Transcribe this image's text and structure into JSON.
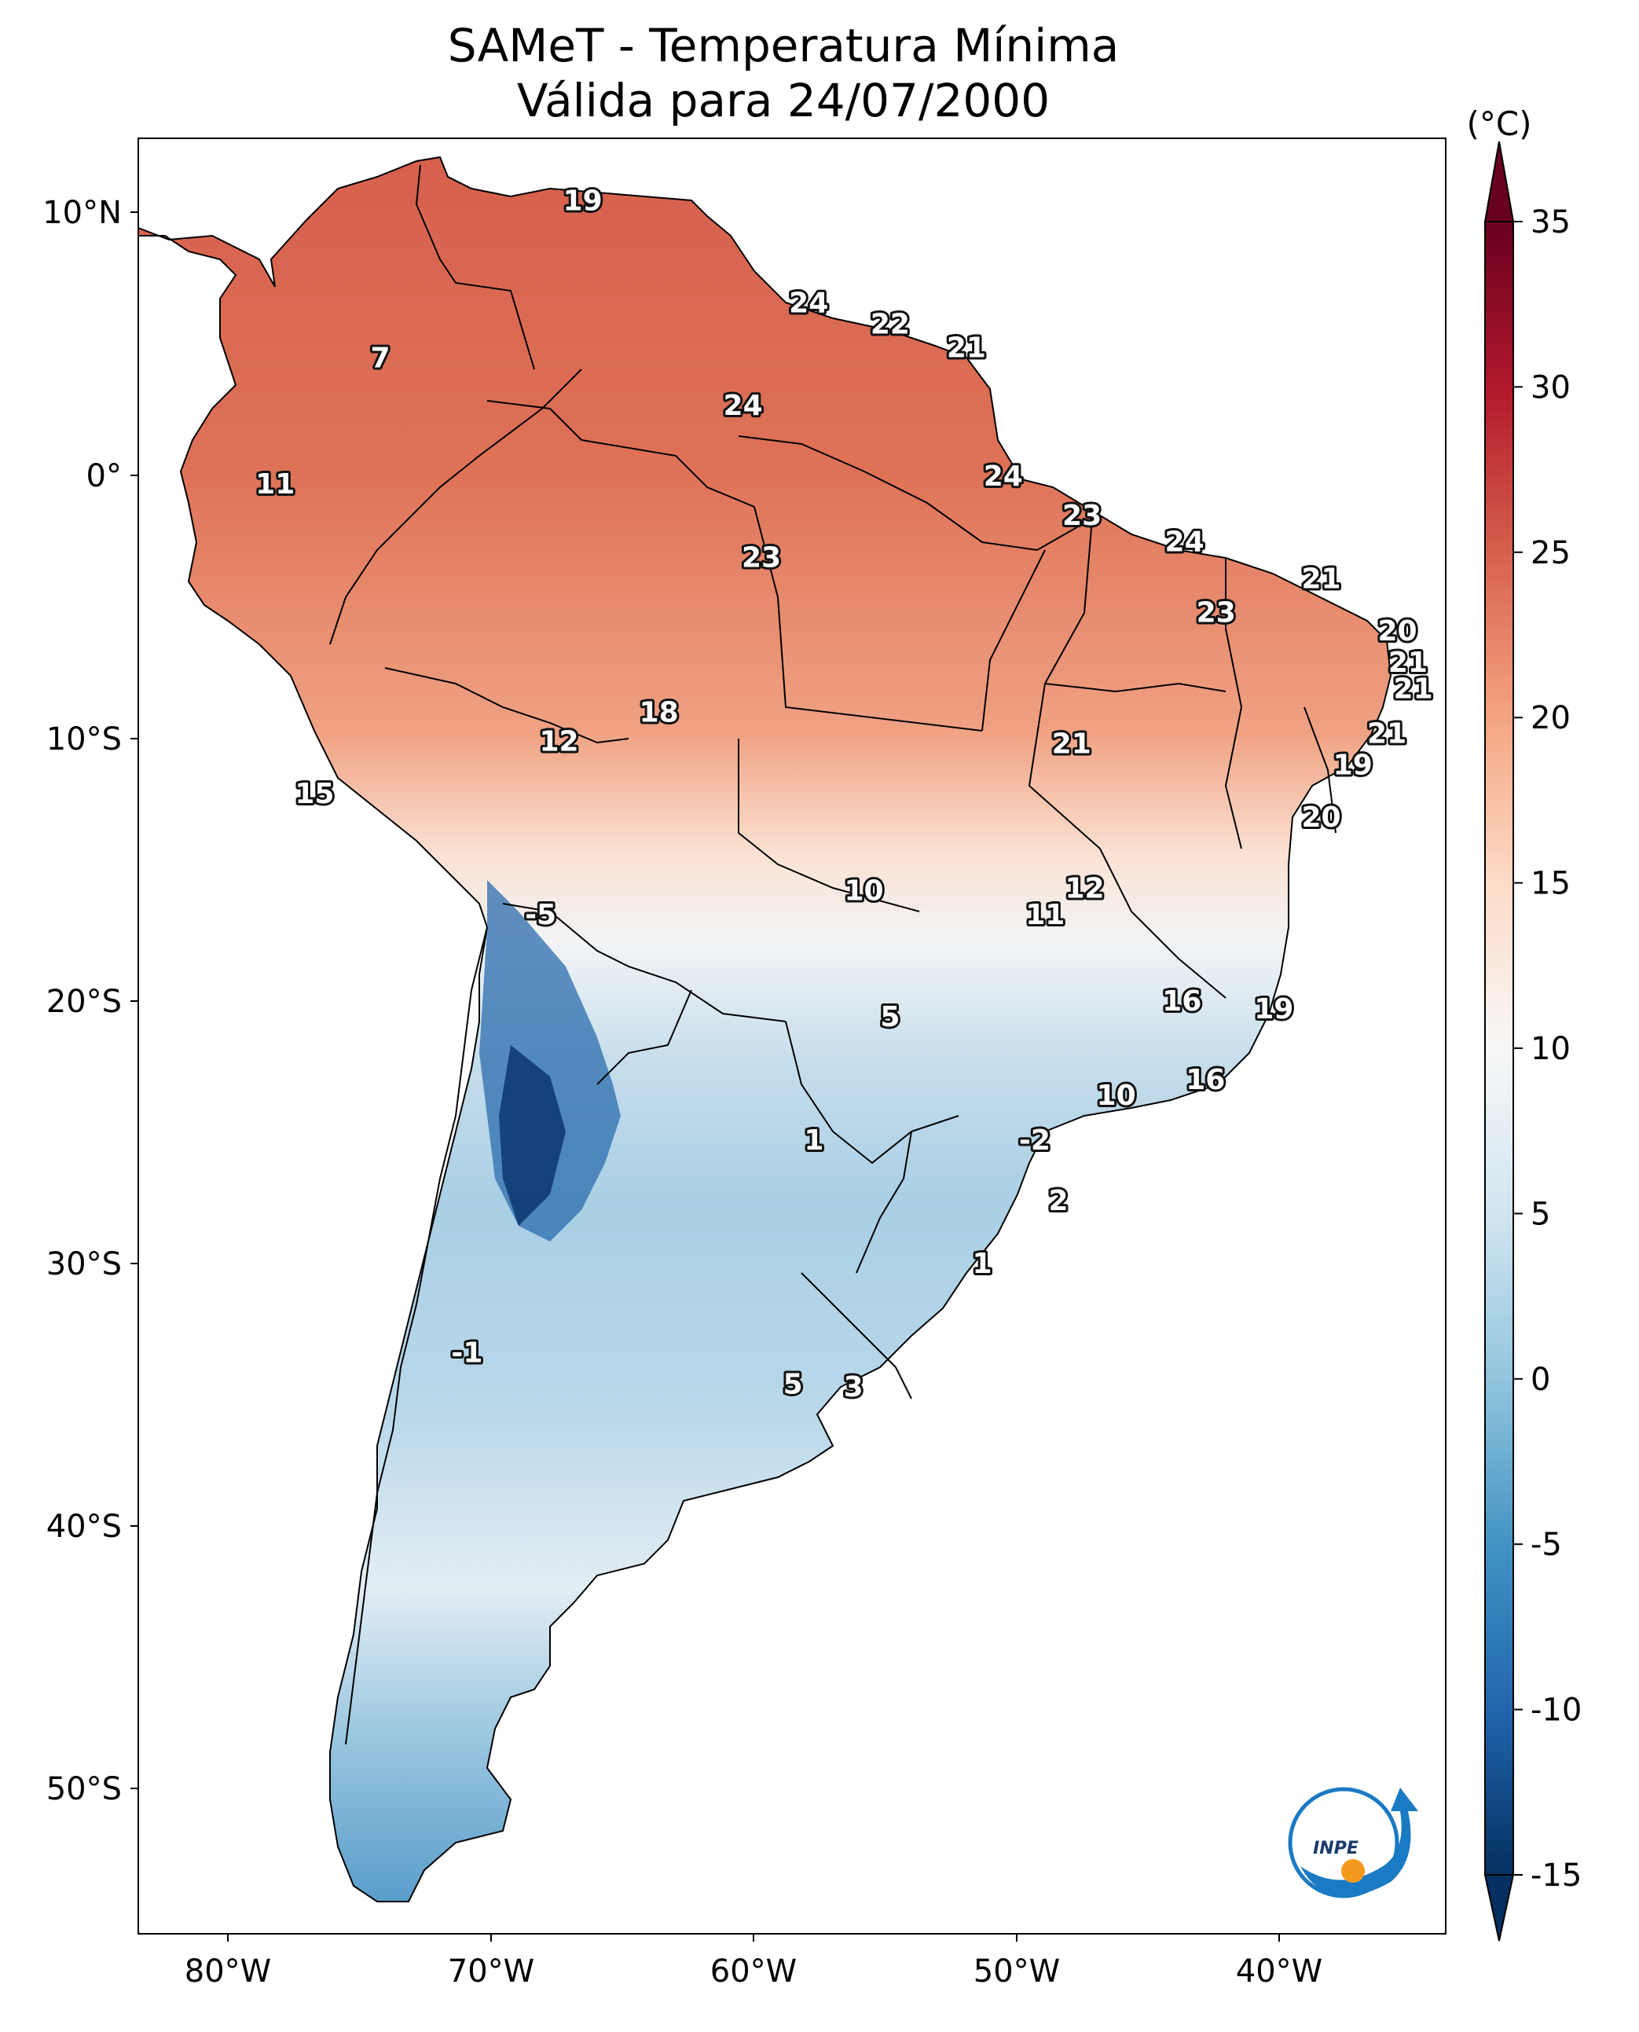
{
  "title": {
    "line1": "SAMeT - Temperatura Mínima",
    "line2": "Válida para 24/07/2000"
  },
  "map": {
    "longitude_ticks": [
      "80°W",
      "70°W",
      "60°W",
      "50°W",
      "40°W"
    ],
    "latitude_ticks": [
      "10°N",
      "0°",
      "10°S",
      "20°S",
      "30°S",
      "40°S",
      "50°S"
    ],
    "boundary_color": "#000000",
    "ocean_color": "#ffffff",
    "point_values": [
      {
        "label": "19",
        "lon": -66.5,
        "lat": 10.5
      },
      {
        "label": "7",
        "lon": -74.2,
        "lat": 4.5
      },
      {
        "label": "24",
        "lon": -57.9,
        "lat": 6.6
      },
      {
        "label": "22",
        "lon": -54.8,
        "lat": 5.8
      },
      {
        "label": "21",
        "lon": -51.9,
        "lat": 4.9
      },
      {
        "label": "24",
        "lon": -60.4,
        "lat": 2.7
      },
      {
        "label": "11",
        "lon": -78.2,
        "lat": -0.3
      },
      {
        "label": "24",
        "lon": -50.5,
        "lat": 0.0
      },
      {
        "label": "23",
        "lon": -47.5,
        "lat": -1.5
      },
      {
        "label": "24",
        "lon": -43.6,
        "lat": -2.5
      },
      {
        "label": "23",
        "lon": -59.7,
        "lat": -3.1
      },
      {
        "label": "21",
        "lon": -38.4,
        "lat": -3.9
      },
      {
        "label": "23",
        "lon": -42.4,
        "lat": -5.2
      },
      {
        "label": "20",
        "lon": -35.5,
        "lat": -5.9
      },
      {
        "label": "21",
        "lon": -35.1,
        "lat": -7.1
      },
      {
        "label": "21",
        "lon": -34.9,
        "lat": -8.1
      },
      {
        "label": "18",
        "lon": -63.6,
        "lat": -9.0
      },
      {
        "label": "21",
        "lon": -35.9,
        "lat": -9.8
      },
      {
        "label": "12",
        "lon": -67.4,
        "lat": -10.1
      },
      {
        "label": "21",
        "lon": -47.9,
        "lat": -10.2
      },
      {
        "label": "19",
        "lon": -37.2,
        "lat": -11.0
      },
      {
        "label": "15",
        "lon": -76.7,
        "lat": -12.1
      },
      {
        "label": "20",
        "lon": -38.4,
        "lat": -13.0
      },
      {
        "label": "12",
        "lon": -47.4,
        "lat": -15.7
      },
      {
        "label": "10",
        "lon": -55.8,
        "lat": -15.8
      },
      {
        "label": "11",
        "lon": -48.9,
        "lat": -16.7
      },
      {
        "label": "-5",
        "lon": -68.1,
        "lat": -16.7
      },
      {
        "label": "16",
        "lon": -43.7,
        "lat": -20.0
      },
      {
        "label": "5",
        "lon": -54.8,
        "lat": -20.6
      },
      {
        "label": "19",
        "lon": -40.2,
        "lat": -20.3
      },
      {
        "label": "16",
        "lon": -42.8,
        "lat": -23.0
      },
      {
        "label": "10",
        "lon": -46.2,
        "lat": -23.6
      },
      {
        "label": "1",
        "lon": -57.7,
        "lat": -25.3
      },
      {
        "label": "-2",
        "lon": -49.3,
        "lat": -25.3
      },
      {
        "label": "2",
        "lon": -48.4,
        "lat": -27.6
      },
      {
        "label": "1",
        "lon": -51.3,
        "lat": -30.0
      },
      {
        "label": "-1",
        "lon": -70.9,
        "lat": -33.4
      },
      {
        "label": "5",
        "lon": -58.5,
        "lat": -34.6
      },
      {
        "label": "3",
        "lon": -56.2,
        "lat": -34.7
      }
    ]
  },
  "colorbar": {
    "unit": "(°C)",
    "tick_labels": [
      "35",
      "30",
      "25",
      "20",
      "15",
      "10",
      "5",
      "0",
      "-5",
      "-10",
      "-15"
    ],
    "min": -15,
    "max": 35,
    "extend": "both",
    "colormap": [
      "#053061",
      "#2166ac",
      "#4393c3",
      "#92c5de",
      "#d1e5f0",
      "#f7f7f7",
      "#fddbc7",
      "#f4a582",
      "#d6604d",
      "#b2182b",
      "#67001f"
    ],
    "under_color": "#053061",
    "over_color": "#67001f"
  },
  "logo": {
    "text": "INPE",
    "ring_color": "#1a7ac3",
    "dot_color": "#f39a1e"
  }
}
